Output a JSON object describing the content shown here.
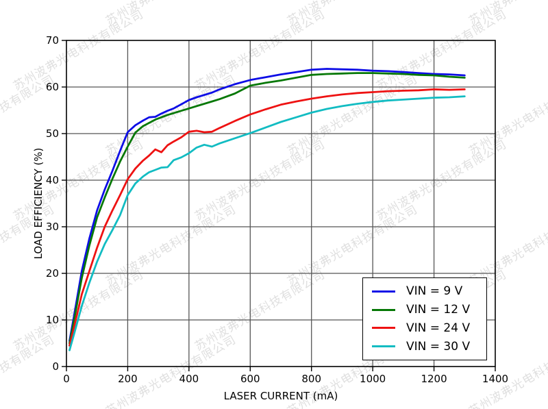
{
  "watermark": {
    "text": "苏州波弗光电科技有限公司",
    "color": "#c6c6c6"
  },
  "chart_data": {
    "type": "line",
    "title": "",
    "xlabel": "LASER CURRENT (mA)",
    "ylabel": "LOAD EFFICIENCY (%)",
    "xlim": [
      0,
      1400
    ],
    "ylim": [
      0,
      70
    ],
    "x_ticks": [
      0,
      200,
      400,
      600,
      800,
      1000,
      1200,
      1400
    ],
    "y_ticks": [
      0,
      10,
      20,
      30,
      40,
      50,
      60,
      70
    ],
    "grid": true,
    "grid_color": "#555555",
    "legend_position": "lower right",
    "x": [
      10,
      25,
      50,
      75,
      100,
      125,
      150,
      175,
      200,
      225,
      250,
      270,
      290,
      310,
      330,
      350,
      375,
      400,
      425,
      450,
      475,
      500,
      550,
      600,
      650,
      700,
      750,
      800,
      850,
      900,
      950,
      1000,
      1050,
      1100,
      1150,
      1200,
      1250,
      1300
    ],
    "series": [
      {
        "name": "VIN = 9 V",
        "color": "#0d0de6",
        "values": [
          5.5,
          11,
          20.5,
          27.5,
          33.5,
          38,
          42,
          46.3,
          50.3,
          51.8,
          52.8,
          53.5,
          53.6,
          54.3,
          54.9,
          55.4,
          56.3,
          57.2,
          57.8,
          58.3,
          58.8,
          59.5,
          60.6,
          61.5,
          62.1,
          62.7,
          63.2,
          63.7,
          63.9,
          63.8,
          63.7,
          63.5,
          63.4,
          63.2,
          63.0,
          62.8,
          62.7,
          62.5
        ]
      },
      {
        "name": "VIN = 12 V",
        "color": "#067806",
        "values": [
          5.0,
          10,
          19,
          26,
          32,
          36.3,
          40.3,
          44,
          47.2,
          50.2,
          51.6,
          52.3,
          53.0,
          53.5,
          54.0,
          54.4,
          54.9,
          55.4,
          55.9,
          56.4,
          56.9,
          57.4,
          58.6,
          60.3,
          60.9,
          61.4,
          62.0,
          62.6,
          62.8,
          62.9,
          63.0,
          63.0,
          62.9,
          62.8,
          62.6,
          62.5,
          62.2,
          62.0
        ]
      },
      {
        "name": "VIN = 24 V",
        "color": "#ee1212",
        "values": [
          4.5,
          8.5,
          15.5,
          20.5,
          25.5,
          30,
          33.5,
          36.8,
          40.2,
          42.5,
          44.2,
          45.3,
          46.6,
          46.0,
          47.5,
          48.3,
          49.2,
          50.4,
          50.6,
          50.3,
          50.4,
          51.2,
          52.7,
          54.1,
          55.2,
          56.2,
          56.9,
          57.5,
          58.0,
          58.4,
          58.7,
          58.9,
          59.1,
          59.2,
          59.3,
          59.5,
          59.4,
          59.5
        ]
      },
      {
        "name": "VIN = 30 V",
        "color": "#12bcc2",
        "values": [
          3.5,
          7,
          13,
          18,
          22.5,
          26.3,
          29.3,
          32.5,
          36.8,
          39.3,
          40.8,
          41.7,
          42.2,
          42.7,
          42.8,
          44.3,
          44.9,
          45.8,
          47.0,
          47.6,
          47.2,
          47.9,
          49.0,
          50.1,
          51.3,
          52.5,
          53.5,
          54.5,
          55.3,
          55.9,
          56.4,
          56.8,
          57.1,
          57.3,
          57.5,
          57.7,
          57.8,
          58.0
        ]
      }
    ]
  }
}
